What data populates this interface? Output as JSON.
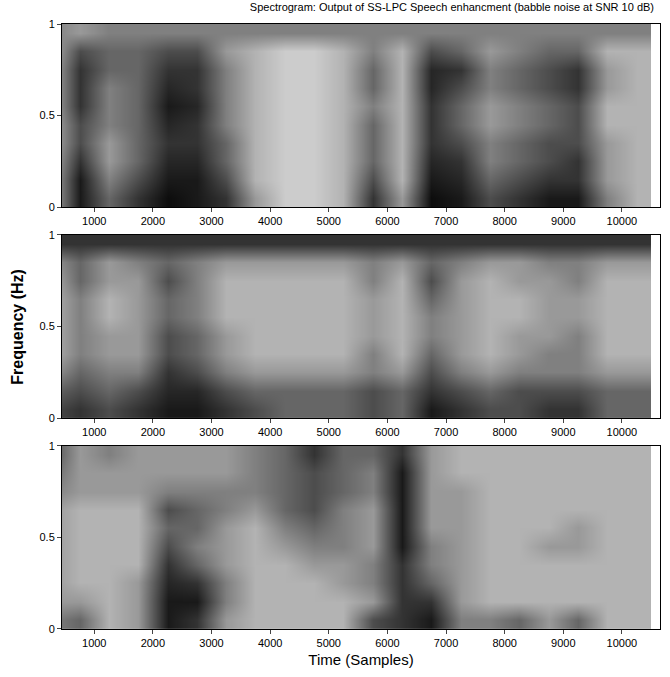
{
  "chart_data": {
    "type": "heatmap",
    "title": "Spectrogram: Output of SS-LPC Speech enhancment (babble noise at SNR 10 dB)",
    "xlabel": "Time (Samples)",
    "ylabel": "Frequency (Hz)",
    "color": "gray",
    "panels": [
      {
        "x": [
          250,
          750,
          1250,
          1750,
          2250,
          2750,
          3250,
          3750,
          4250,
          4750,
          5250,
          5750,
          6250,
          6750,
          7250,
          7750,
          8250,
          8750,
          9250,
          9750,
          10250
        ],
        "y": [
          0.05,
          0.15,
          0.25,
          0.35,
          0.45,
          0.55,
          0.65,
          0.75,
          0.85,
          0.95
        ],
        "xlim": [
          450,
          10650
        ],
        "ylim": [
          0,
          1
        ],
        "xticks": [
          1000,
          2000,
          3000,
          4000,
          5000,
          6000,
          7000,
          8000,
          9000,
          10000
        ],
        "yticks": [
          0,
          0.5,
          1
        ],
        "zlim": [
          0,
          1
        ],
        "z": [
          [
            0.3,
            0.9,
            0.6,
            0.8,
            0.95,
            0.9,
            0.8,
            0.4,
            0.2,
            0.2,
            0.3,
            0.8,
            0.4,
            0.95,
            0.9,
            0.7,
            0.8,
            0.9,
            0.9,
            0.5,
            0.3
          ],
          [
            0.3,
            0.9,
            0.5,
            0.7,
            0.9,
            0.9,
            0.7,
            0.3,
            0.2,
            0.2,
            0.3,
            0.7,
            0.3,
            0.9,
            0.85,
            0.6,
            0.7,
            0.8,
            0.8,
            0.4,
            0.3
          ],
          [
            0.3,
            0.8,
            0.4,
            0.6,
            0.85,
            0.85,
            0.6,
            0.3,
            0.2,
            0.2,
            0.3,
            0.6,
            0.3,
            0.85,
            0.8,
            0.5,
            0.6,
            0.7,
            0.8,
            0.4,
            0.3
          ],
          [
            0.3,
            0.7,
            0.4,
            0.6,
            0.8,
            0.8,
            0.6,
            0.3,
            0.2,
            0.2,
            0.3,
            0.6,
            0.3,
            0.8,
            0.7,
            0.5,
            0.6,
            0.7,
            0.7,
            0.4,
            0.3
          ],
          [
            0.3,
            0.7,
            0.5,
            0.6,
            0.85,
            0.8,
            0.5,
            0.3,
            0.2,
            0.2,
            0.3,
            0.6,
            0.3,
            0.8,
            0.6,
            0.4,
            0.5,
            0.6,
            0.7,
            0.3,
            0.3
          ],
          [
            0.3,
            0.8,
            0.5,
            0.6,
            0.9,
            0.85,
            0.5,
            0.3,
            0.2,
            0.2,
            0.3,
            0.5,
            0.3,
            0.8,
            0.6,
            0.4,
            0.5,
            0.6,
            0.7,
            0.3,
            0.3
          ],
          [
            0.3,
            0.8,
            0.5,
            0.6,
            0.85,
            0.8,
            0.5,
            0.3,
            0.2,
            0.2,
            0.3,
            0.6,
            0.3,
            0.85,
            0.7,
            0.5,
            0.6,
            0.7,
            0.8,
            0.4,
            0.3
          ],
          [
            0.3,
            0.8,
            0.6,
            0.6,
            0.8,
            0.8,
            0.5,
            0.3,
            0.2,
            0.2,
            0.3,
            0.6,
            0.3,
            0.85,
            0.8,
            0.5,
            0.6,
            0.7,
            0.8,
            0.4,
            0.3
          ],
          [
            0.3,
            0.7,
            0.6,
            0.6,
            0.7,
            0.7,
            0.4,
            0.3,
            0.2,
            0.2,
            0.3,
            0.5,
            0.3,
            0.7,
            0.6,
            0.4,
            0.5,
            0.6,
            0.6,
            0.3,
            0.3
          ],
          [
            0.5,
            0.4,
            0.5,
            0.5,
            0.5,
            0.5,
            0.5,
            0.5,
            0.5,
            0.5,
            0.5,
            0.5,
            0.5,
            0.5,
            0.5,
            0.5,
            0.5,
            0.5,
            0.5,
            0.5,
            0.5
          ]
        ]
      },
      {
        "x": [
          250,
          750,
          1250,
          1750,
          2250,
          2750,
          3250,
          3750,
          4250,
          4750,
          5250,
          5750,
          6250,
          6750,
          7250,
          7750,
          8250,
          8750,
          9250,
          9750,
          10250
        ],
        "y": [
          0.05,
          0.15,
          0.25,
          0.35,
          0.45,
          0.55,
          0.65,
          0.75,
          0.85,
          0.95
        ],
        "xlim": [
          450,
          10650
        ],
        "ylim": [
          0,
          1
        ],
        "xticks": [
          1000,
          2000,
          3000,
          4000,
          5000,
          6000,
          7000,
          8000,
          9000,
          10000
        ],
        "yticks": [
          0,
          0.5,
          1
        ],
        "zlim": [
          0,
          1
        ],
        "z": [
          [
            0.7,
            0.8,
            0.7,
            0.8,
            0.9,
            0.9,
            0.8,
            0.7,
            0.6,
            0.6,
            0.6,
            0.7,
            0.6,
            0.9,
            0.8,
            0.7,
            0.7,
            0.8,
            0.8,
            0.6,
            0.6
          ],
          [
            0.6,
            0.7,
            0.6,
            0.7,
            0.85,
            0.85,
            0.7,
            0.6,
            0.6,
            0.6,
            0.6,
            0.7,
            0.6,
            0.8,
            0.7,
            0.6,
            0.7,
            0.7,
            0.7,
            0.6,
            0.6
          ],
          [
            0.4,
            0.6,
            0.5,
            0.5,
            0.8,
            0.7,
            0.5,
            0.4,
            0.4,
            0.4,
            0.4,
            0.5,
            0.4,
            0.7,
            0.5,
            0.4,
            0.5,
            0.5,
            0.5,
            0.4,
            0.4
          ],
          [
            0.3,
            0.5,
            0.4,
            0.4,
            0.7,
            0.6,
            0.4,
            0.3,
            0.3,
            0.3,
            0.3,
            0.5,
            0.3,
            0.6,
            0.4,
            0.3,
            0.4,
            0.5,
            0.5,
            0.3,
            0.3
          ],
          [
            0.3,
            0.5,
            0.4,
            0.4,
            0.7,
            0.6,
            0.4,
            0.3,
            0.3,
            0.3,
            0.3,
            0.4,
            0.3,
            0.5,
            0.4,
            0.3,
            0.4,
            0.4,
            0.5,
            0.3,
            0.3
          ],
          [
            0.3,
            0.5,
            0.3,
            0.4,
            0.6,
            0.5,
            0.3,
            0.3,
            0.3,
            0.3,
            0.3,
            0.4,
            0.3,
            0.5,
            0.4,
            0.3,
            0.3,
            0.4,
            0.4,
            0.3,
            0.3
          ],
          [
            0.3,
            0.5,
            0.3,
            0.4,
            0.6,
            0.5,
            0.3,
            0.3,
            0.3,
            0.3,
            0.3,
            0.4,
            0.3,
            0.6,
            0.4,
            0.3,
            0.3,
            0.4,
            0.4,
            0.3,
            0.3
          ],
          [
            0.3,
            0.6,
            0.4,
            0.4,
            0.7,
            0.5,
            0.3,
            0.3,
            0.3,
            0.3,
            0.3,
            0.5,
            0.3,
            0.7,
            0.4,
            0.3,
            0.4,
            0.4,
            0.5,
            0.3,
            0.3
          ],
          [
            0.4,
            0.6,
            0.4,
            0.5,
            0.6,
            0.5,
            0.4,
            0.4,
            0.4,
            0.4,
            0.4,
            0.5,
            0.4,
            0.6,
            0.5,
            0.4,
            0.4,
            0.5,
            0.5,
            0.4,
            0.4
          ],
          [
            0.8,
            0.8,
            0.8,
            0.8,
            0.8,
            0.8,
            0.8,
            0.8,
            0.8,
            0.8,
            0.8,
            0.8,
            0.8,
            0.8,
            0.8,
            0.8,
            0.8,
            0.8,
            0.8,
            0.8,
            0.8
          ]
        ]
      },
      {
        "x": [
          250,
          750,
          1250,
          1750,
          2250,
          2750,
          3250,
          3750,
          4250,
          4750,
          5250,
          5750,
          6250,
          6750,
          7250,
          7750,
          8250,
          8750,
          9250,
          9750,
          10250
        ],
        "y": [
          0.05,
          0.15,
          0.25,
          0.35,
          0.45,
          0.55,
          0.65,
          0.75,
          0.85,
          0.95
        ],
        "xlim": [
          450,
          10650
        ],
        "ylim": [
          0,
          1
        ],
        "xticks": [
          1000,
          2000,
          3000,
          4000,
          5000,
          6000,
          7000,
          8000,
          9000,
          10000
        ],
        "yticks": [
          0,
          0.5,
          1
        ],
        "zlim": [
          0,
          1
        ],
        "z": [
          [
            0.5,
            0.6,
            0.3,
            0.4,
            0.9,
            0.8,
            0.4,
            0.3,
            0.3,
            0.3,
            0.3,
            0.7,
            0.8,
            0.9,
            0.5,
            0.5,
            0.6,
            0.4,
            0.6,
            0.3,
            0.3
          ],
          [
            0.4,
            0.4,
            0.3,
            0.4,
            0.9,
            0.9,
            0.5,
            0.3,
            0.3,
            0.3,
            0.3,
            0.4,
            0.8,
            0.8,
            0.4,
            0.3,
            0.3,
            0.3,
            0.3,
            0.3,
            0.3
          ],
          [
            0.4,
            0.3,
            0.3,
            0.4,
            0.85,
            0.8,
            0.5,
            0.3,
            0.3,
            0.3,
            0.4,
            0.5,
            0.8,
            0.6,
            0.4,
            0.3,
            0.3,
            0.3,
            0.3,
            0.3,
            0.3
          ],
          [
            0.4,
            0.3,
            0.3,
            0.3,
            0.8,
            0.6,
            0.4,
            0.3,
            0.3,
            0.4,
            0.4,
            0.5,
            0.8,
            0.5,
            0.4,
            0.3,
            0.3,
            0.3,
            0.3,
            0.3,
            0.3
          ],
          [
            0.4,
            0.3,
            0.3,
            0.3,
            0.7,
            0.5,
            0.4,
            0.3,
            0.4,
            0.5,
            0.5,
            0.4,
            0.9,
            0.5,
            0.4,
            0.3,
            0.3,
            0.4,
            0.4,
            0.3,
            0.3
          ],
          [
            0.4,
            0.3,
            0.3,
            0.3,
            0.6,
            0.6,
            0.4,
            0.3,
            0.5,
            0.6,
            0.5,
            0.4,
            0.9,
            0.4,
            0.4,
            0.3,
            0.3,
            0.3,
            0.4,
            0.3,
            0.3
          ],
          [
            0.4,
            0.3,
            0.3,
            0.3,
            0.7,
            0.6,
            0.5,
            0.4,
            0.6,
            0.7,
            0.5,
            0.4,
            0.9,
            0.4,
            0.4,
            0.3,
            0.3,
            0.3,
            0.3,
            0.3,
            0.3
          ],
          [
            0.5,
            0.4,
            0.4,
            0.4,
            0.5,
            0.5,
            0.5,
            0.5,
            0.6,
            0.7,
            0.6,
            0.5,
            0.9,
            0.4,
            0.4,
            0.3,
            0.3,
            0.3,
            0.3,
            0.3,
            0.3
          ],
          [
            0.6,
            0.4,
            0.4,
            0.4,
            0.4,
            0.4,
            0.4,
            0.5,
            0.6,
            0.7,
            0.6,
            0.5,
            0.9,
            0.4,
            0.3,
            0.3,
            0.3,
            0.3,
            0.3,
            0.3,
            0.3
          ],
          [
            0.7,
            0.4,
            0.5,
            0.4,
            0.4,
            0.4,
            0.4,
            0.5,
            0.6,
            0.8,
            0.6,
            0.6,
            0.8,
            0.4,
            0.3,
            0.3,
            0.3,
            0.3,
            0.3,
            0.3,
            0.3
          ]
        ]
      }
    ]
  }
}
